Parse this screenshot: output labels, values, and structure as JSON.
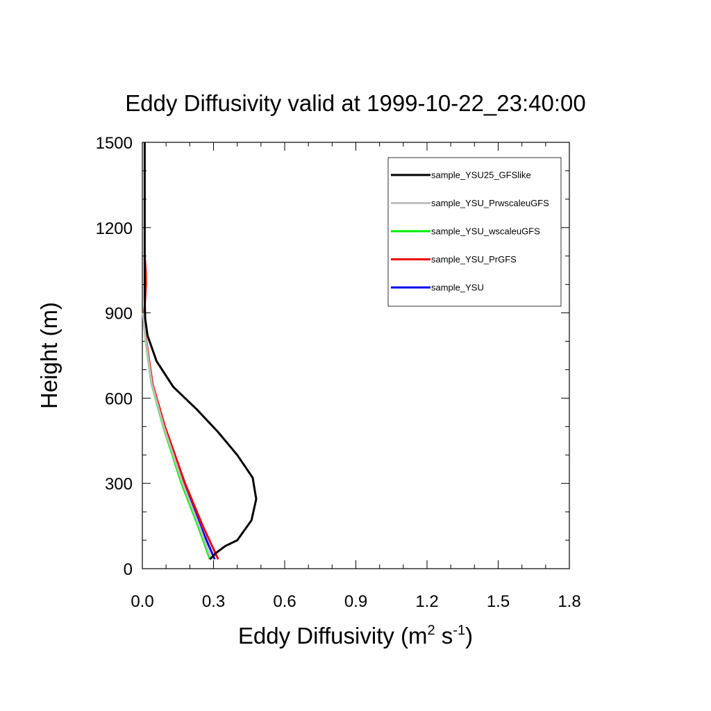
{
  "chart_data": {
    "type": "line",
    "title": "Eddy Diffusivity valid at 1999-10-22_23:40:00",
    "xlabel": {
      "base": "Eddy Diffusivity (m",
      "sup1": "2",
      "mid": " s",
      "sup2": "-1",
      "end": ")"
    },
    "ylabel": "Height (m)",
    "xlim": [
      0.0,
      1.8
    ],
    "ylim": [
      0,
      1500
    ],
    "xticks": [
      0.0,
      0.3,
      0.6,
      0.9,
      1.2,
      1.5,
      1.8
    ],
    "xtick_labels": [
      "0.0",
      "0.3",
      "0.6",
      "0.9",
      "1.2",
      "1.5",
      "1.8"
    ],
    "yticks": [
      0,
      300,
      600,
      900,
      1200,
      1500
    ],
    "ytick_labels": [
      "0",
      "300",
      "600",
      "900",
      "1200",
      "1500"
    ],
    "x_minor_step": 0.1,
    "y_minor_step": 100,
    "grid": false,
    "legend_position": "top-right",
    "series": [
      {
        "name": "sample_YSU25_GFSlike",
        "color": "#000000",
        "x": [
          0.285,
          0.31,
          0.35,
          0.4,
          0.46,
          0.48,
          0.465,
          0.4,
          0.32,
          0.23,
          0.13,
          0.06,
          0.022,
          0.012,
          0.01,
          0.01,
          0.01,
          0.01,
          0.01
        ],
        "y": [
          33,
          55,
          80,
          100,
          170,
          245,
          320,
          400,
          480,
          560,
          640,
          730,
          820,
          880,
          950,
          1100,
          1200,
          1350,
          1500
        ]
      },
      {
        "name": "sample_YSU_PrwscaleuGFS",
        "color": "#bfbfbf",
        "x": [
          0.29,
          0.24,
          0.17,
          0.09,
          0.04,
          0.015,
          0.005,
          0.003
        ],
        "y": [
          33,
          150,
          300,
          500,
          650,
          800,
          880,
          900
        ]
      },
      {
        "name": "sample_YSU_wscaleuGFS",
        "color": "#00ee00",
        "x": [
          0.285,
          0.235,
          0.165,
          0.088,
          0.039,
          0.014,
          0.005,
          0.003
        ],
        "y": [
          33,
          150,
          300,
          500,
          650,
          800,
          880,
          900
        ]
      },
      {
        "name": "sample_YSU_PrGFS",
        "color": "#ee0000",
        "x": [
          0.32,
          0.255,
          0.18,
          0.095,
          0.043,
          0.017,
          0.006,
          0.012,
          0.015,
          0.014,
          0.01
        ],
        "y": [
          33,
          150,
          300,
          500,
          650,
          800,
          880,
          950,
          1000,
          1050,
          1100
        ]
      },
      {
        "name": "sample_YSU",
        "color": "#0000ee",
        "x": [
          0.305,
          0.245,
          0.173,
          0.091,
          0.041,
          0.015,
          0.005,
          0.003
        ],
        "y": [
          33,
          150,
          300,
          500,
          650,
          800,
          880,
          900
        ]
      }
    ]
  }
}
